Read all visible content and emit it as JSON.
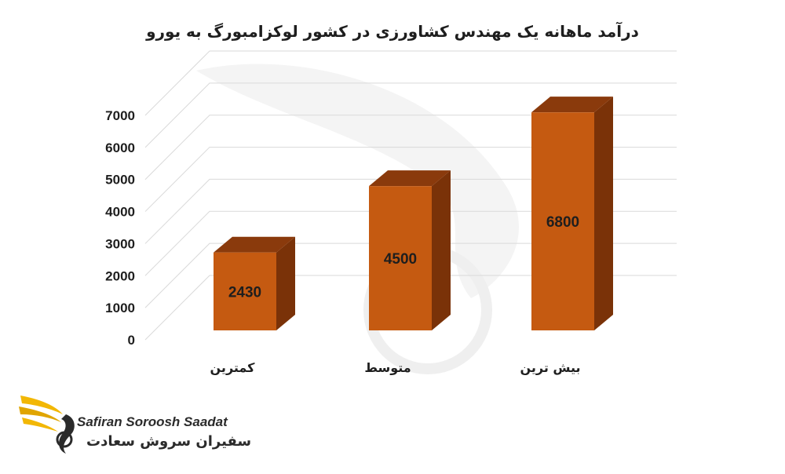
{
  "chart_data": {
    "type": "bar",
    "title": "درآمد ماهانه یک مهندس کشاورزی در کشور لوکزامبورگ به یورو",
    "categories": [
      "کمترین",
      "متوسط",
      "بیش ترین"
    ],
    "values": [
      2430,
      4500,
      6800
    ],
    "data_labels": [
      "2430",
      "4500",
      "6800"
    ],
    "ylim": [
      0,
      7000
    ],
    "yticks": [
      0,
      1000,
      2000,
      3000,
      4000,
      5000,
      6000,
      7000
    ],
    "grid": true,
    "style": "3d-columns",
    "bar_color": "#c55a11",
    "bar_top_color": "#8a3a0c",
    "bar_side_color": "#7a3208"
  },
  "watermark": {
    "brand_latin": "Safiran Soroosh Saadat",
    "brand_persian": "سفیران سروش سعادت",
    "icon": "bird-wing-logo-icon",
    "accent_color": "#f2b705"
  }
}
